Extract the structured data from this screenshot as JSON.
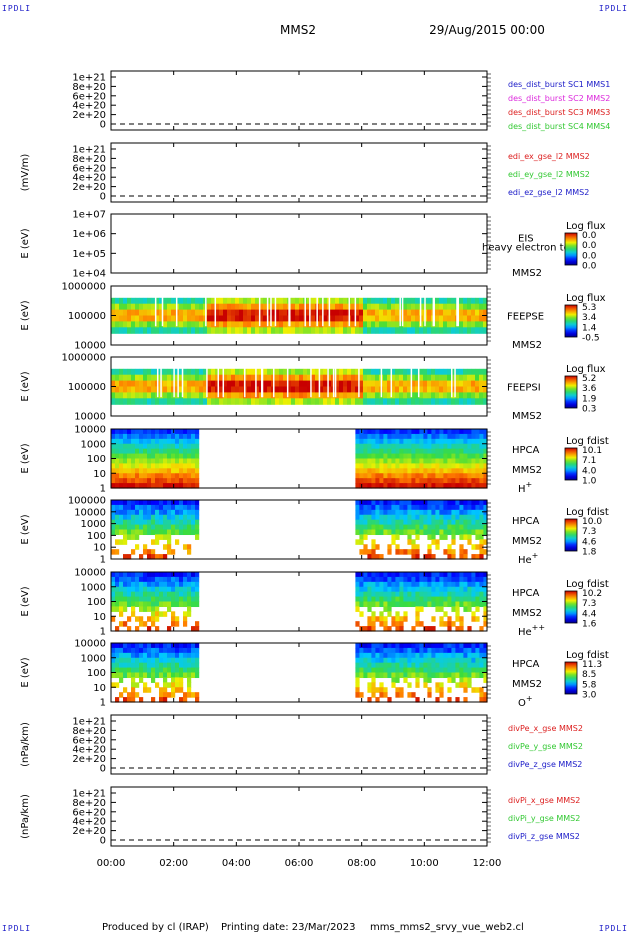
{
  "header": {
    "spacecraft": "MMS2",
    "datetime": "29/Aug/2015 00:00",
    "corner_mark": "IPDLI"
  },
  "footer": {
    "produced_by": "Produced by  cl (IRAP)",
    "printing_date": "Printing date: 23/Mar/2023",
    "filename": "mms_mms2_srvy_vue_web2.cl"
  },
  "time_axis": {
    "ticks": [
      "00:00",
      "02:00",
      "04:00",
      "06:00",
      "08:00",
      "10:00",
      "12:00"
    ],
    "range_hours": [
      0,
      12
    ]
  },
  "colors": {
    "blue": "#1a1ac8",
    "magenta": "#dc28dc",
    "red": "#dc1e1e",
    "green": "#32c832"
  },
  "chart_data": [
    {
      "type": "line",
      "ylabel": "",
      "yticks": [
        "1e+21",
        "8e+20",
        "6e+20",
        "4e+20",
        "2e+20",
        "0"
      ],
      "zero_line": true,
      "legend": [
        {
          "name": "des_dist_burst SC1 MMS1",
          "color": "#1a1ac8"
        },
        {
          "name": "des_dist_burst SC2 MMS2",
          "color": "#dc28dc"
        },
        {
          "name": "des_dist_burst SC3 MMS3",
          "color": "#dc1e1e"
        },
        {
          "name": "des_dist_burst SC4 MMS4",
          "color": "#32c832"
        }
      ]
    },
    {
      "type": "line",
      "ylabel": "(mV/m)",
      "yticks": [
        "1e+21",
        "8e+20",
        "6e+20",
        "4e+20",
        "2e+20",
        "0"
      ],
      "zero_line": true,
      "legend": [
        {
          "name": "edi_ex_gse_l2 MMS2",
          "color": "#dc1e1e"
        },
        {
          "name": "edi_ey_gse_l2 MMS2",
          "color": "#32c832"
        },
        {
          "name": "edi_ez_gse_l2 MMS2",
          "color": "#1a1ac8"
        }
      ]
    },
    {
      "type": "heatmap",
      "ylabel": "E (eV)",
      "yticks": [
        "1e+07",
        "1e+06",
        "1e+05",
        "1e+04"
      ],
      "instrument": "EIS",
      "overlay_text": "heavy electron to",
      "spacecraft": "MMS2",
      "species": "",
      "colorbar": {
        "title": "Log flux",
        "ticks": [
          "0.0",
          "0.0",
          "0.0",
          "0.0"
        ]
      },
      "coverage_hours": []
    },
    {
      "type": "heatmap",
      "ylabel": "E (eV)",
      "yticks": [
        "1000000",
        "100000",
        "10000"
      ],
      "instrument": "FEEPSE",
      "overlay_text": "",
      "spacecraft": "MMS2",
      "species": "",
      "colorbar": {
        "title": "Log flux",
        "ticks": [
          "5.3",
          "3.4",
          "1.4",
          "-0.5"
        ]
      },
      "coverage_hours": [
        [
          0,
          12
        ]
      ]
    },
    {
      "type": "heatmap",
      "ylabel": "E (eV)",
      "yticks": [
        "1000000",
        "100000",
        "10000"
      ],
      "instrument": "FEEPSI",
      "overlay_text": "",
      "spacecraft": "MMS2",
      "species": "",
      "colorbar": {
        "title": "Log flux",
        "ticks": [
          "5.2",
          "3.6",
          "1.9",
          "0.3"
        ]
      },
      "coverage_hours": [
        [
          0,
          12
        ]
      ]
    },
    {
      "type": "heatmap",
      "ylabel": "E (eV)",
      "yticks": [
        "10000",
        "1000",
        "100",
        "10",
        "1"
      ],
      "instrument": "HPCA",
      "overlay_text": "",
      "spacecraft": "MMS2",
      "species": "H+",
      "colorbar": {
        "title": "Log fdist",
        "ticks": [
          "10.1",
          "7.1",
          "4.0",
          "1.0"
        ]
      },
      "coverage_hours": [
        [
          0,
          2.7
        ],
        [
          7.8,
          12
        ]
      ]
    },
    {
      "type": "heatmap",
      "ylabel": "E (eV)",
      "yticks": [
        "100000",
        "10000",
        "1000",
        "100",
        "10",
        "1"
      ],
      "instrument": "HPCA",
      "overlay_text": "",
      "spacecraft": "MMS2",
      "species": "He+",
      "colorbar": {
        "title": "Log fdist",
        "ticks": [
          "10.0",
          "7.3",
          "4.6",
          "1.8"
        ]
      },
      "coverage_hours": [
        [
          0,
          2.7
        ],
        [
          7.8,
          12
        ]
      ]
    },
    {
      "type": "heatmap",
      "ylabel": "E (eV)",
      "yticks": [
        "10000",
        "1000",
        "100",
        "10",
        "1"
      ],
      "instrument": "HPCA",
      "overlay_text": "",
      "spacecraft": "MMS2",
      "species": "He++",
      "colorbar": {
        "title": "Log fdist",
        "ticks": [
          "10.2",
          "7.3",
          "4.4",
          "1.6"
        ]
      },
      "coverage_hours": [
        [
          0,
          2.7
        ],
        [
          7.8,
          12
        ]
      ]
    },
    {
      "type": "heatmap",
      "ylabel": "E (eV)",
      "yticks": [
        "10000",
        "1000",
        "100",
        "10",
        "1"
      ],
      "instrument": "HPCA",
      "overlay_text": "",
      "spacecraft": "MMS2",
      "species": "O+",
      "colorbar": {
        "title": "Log fdist",
        "ticks": [
          "11.3",
          "8.5",
          "5.8",
          "3.0"
        ]
      },
      "coverage_hours": [
        [
          0,
          2.7
        ],
        [
          7.8,
          12
        ]
      ]
    },
    {
      "type": "line",
      "ylabel": "(nPa/km)",
      "yticks": [
        "1e+21",
        "8e+20",
        "6e+20",
        "4e+20",
        "2e+20",
        "0"
      ],
      "zero_line": true,
      "legend": [
        {
          "name": "divPe_x_gse MMS2",
          "color": "#dc1e1e"
        },
        {
          "name": "divPe_y_gse MMS2",
          "color": "#32c832"
        },
        {
          "name": "divPe_z_gse MMS2",
          "color": "#1a1ac8"
        }
      ]
    },
    {
      "type": "line",
      "ylabel": "(nPa/km)",
      "yticks": [
        "1e+21",
        "8e+20",
        "6e+20",
        "4e+20",
        "2e+20",
        "0"
      ],
      "zero_line": true,
      "legend": [
        {
          "name": "divPi_x_gse MMS2",
          "color": "#dc1e1e"
        },
        {
          "name": "divPi_y_gse MMS2",
          "color": "#32c832"
        },
        {
          "name": "divPi_z_gse MMS2",
          "color": "#1a1ac8"
        }
      ]
    }
  ]
}
